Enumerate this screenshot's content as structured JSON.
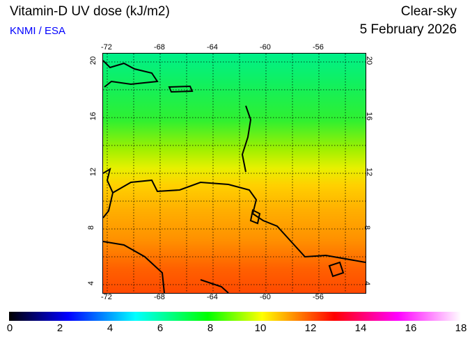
{
  "header": {
    "title": "Vitamin-D UV dose (kJ/m2)",
    "credit": "KNMI / ESA",
    "sky": "Clear-sky",
    "date": "5 February 2026"
  },
  "map": {
    "lon_ticks": [
      "-72",
      "-68",
      "-64",
      "-60",
      "-56"
    ],
    "lat_ticks": [
      "20",
      "16",
      "12",
      "8",
      "4"
    ],
    "lon_values": [
      -72,
      -68,
      -64,
      -60,
      -56
    ],
    "lat_values": [
      20,
      16,
      12,
      8,
      4
    ]
  },
  "colorbar": {
    "labels": [
      "0",
      "2",
      "4",
      "6",
      "8",
      "10",
      "12",
      "14",
      "16",
      "18"
    ],
    "min": 0,
    "max": 18
  }
}
